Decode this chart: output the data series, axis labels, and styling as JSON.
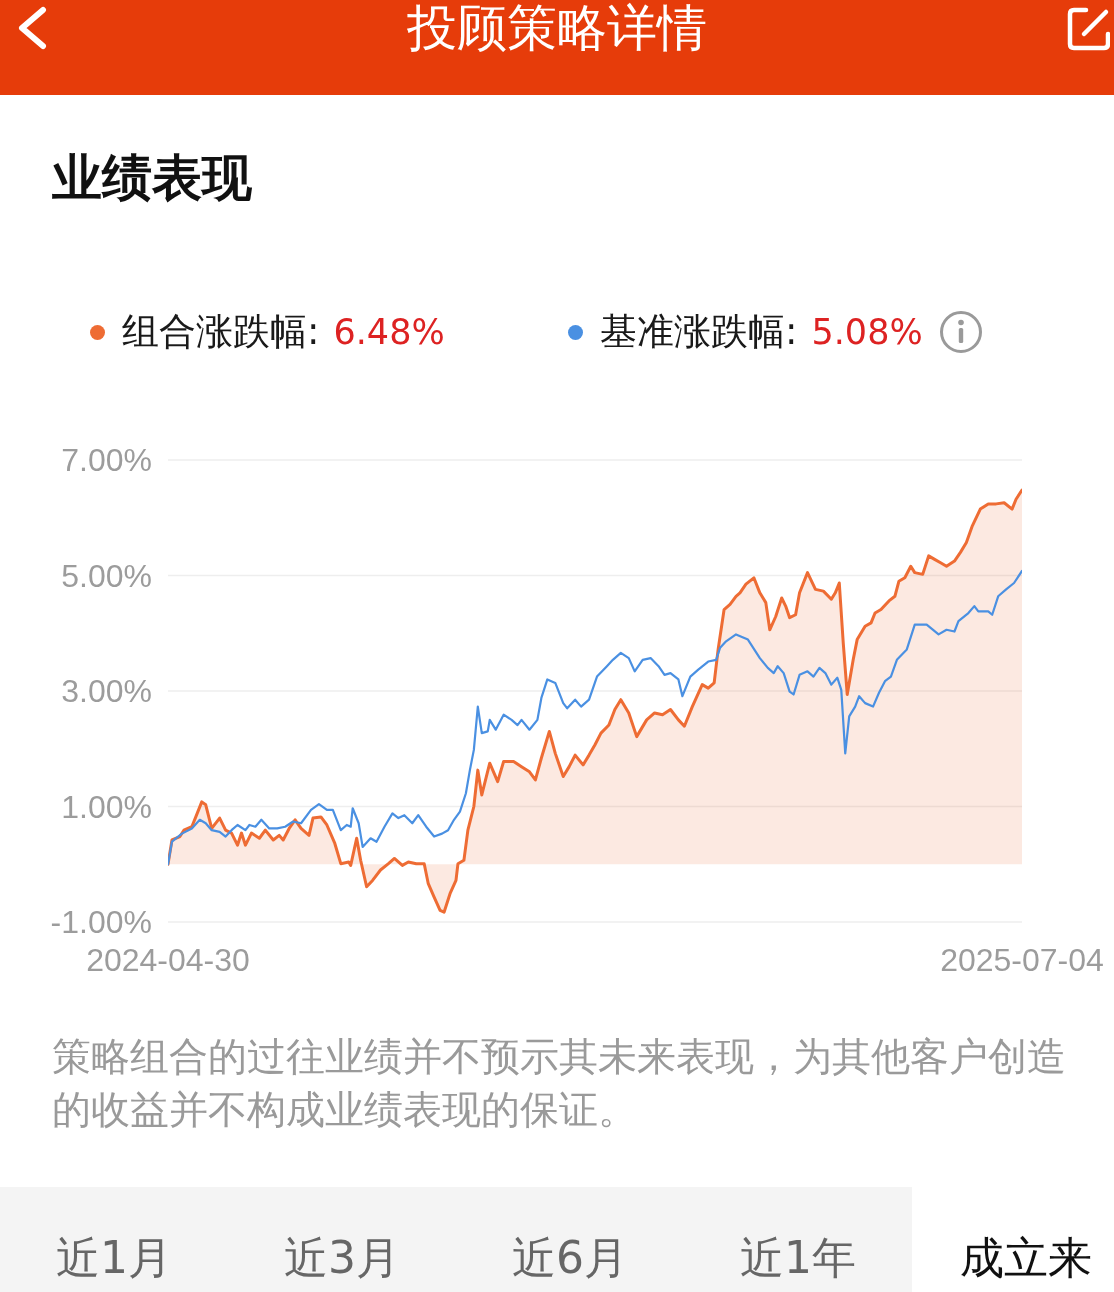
{
  "chart_data": {
    "type": "line",
    "title": "投顾策略详情",
    "subtitle": "业绩表现",
    "legend": "top",
    "grid": "y",
    "xlim": [
      "2024-04-30",
      "2025-07-04"
    ],
    "xticks": [
      "2024-04-30",
      "2025-07-04"
    ],
    "ylim": [
      -1,
      7
    ],
    "yticks": [
      {
        "value": -1,
        "label": "-1.00%"
      },
      {
        "value": 1,
        "label": "1.00%"
      },
      {
        "value": 3,
        "label": "3.00%"
      },
      {
        "value": 5,
        "label": "5.00%"
      },
      {
        "value": 7,
        "label": "7.00%"
      }
    ],
    "annotations": [
      "6.48%",
      "5.08%",
      "策略组合的过往业绩并不预示其未来表现，为其他客户创造的收益并不构成业绩表现的保证。",
      "近1月",
      "近3月",
      "近6月",
      "近1年",
      "成立来"
    ],
    "series": [
      {
        "name": "组合涨跌幅:",
        "type": "area",
        "color": "#ee6c34",
        "x": [
          "2024-04-30",
          "2024-05-02",
          "2024-05-06",
          "2024-05-08",
          "2024-05-12",
          "2024-05-14",
          "2024-05-17",
          "2024-05-19",
          "2024-05-22",
          "2024-05-26",
          "2024-05-29",
          "2024-06-01",
          "2024-06-04",
          "2024-06-06",
          "2024-06-08",
          "2024-06-11",
          "2024-06-15",
          "2024-06-18",
          "2024-06-22",
          "2024-06-25",
          "2024-06-27",
          "2024-06-30",
          "2024-07-03",
          "2024-07-06",
          "2024-07-10",
          "2024-07-12",
          "2024-07-16",
          "2024-07-19",
          "2024-07-23",
          "2024-07-26",
          "2024-07-30",
          "2024-07-31",
          "2024-08-03",
          "2024-08-05",
          "2024-08-08",
          "2024-08-11",
          "2024-08-15",
          "2024-08-19",
          "2024-08-22",
          "2024-08-26",
          "2024-08-29",
          "2024-09-02",
          "2024-09-06",
          "2024-09-08",
          "2024-09-11",
          "2024-09-14",
          "2024-09-16",
          "2024-09-19",
          "2024-09-22",
          "2024-09-23",
          "2024-09-26",
          "2024-09-28",
          "2024-10-01",
          "2024-10-03",
          "2024-10-05",
          "2024-10-09",
          "2024-10-13",
          "2024-10-16",
          "2024-10-21",
          "2024-10-25",
          "2024-10-29",
          "2024-11-01",
          "2024-11-04",
          "2024-11-08",
          "2024-11-11",
          "2024-11-15",
          "2024-11-18",
          "2024-11-21",
          "2024-11-25",
          "2024-11-28",
          "2024-12-01",
          "2024-12-04",
          "2024-12-08",
          "2024-12-11",
          "2024-12-14",
          "2024-12-18",
          "2024-12-22",
          "2024-12-27",
          "2024-12-31",
          "2025-01-04",
          "2025-01-08",
          "2025-01-12",
          "2025-01-15",
          "2025-01-19",
          "2025-01-24",
          "2025-01-27",
          "2025-01-30",
          "2025-02-01",
          "2025-02-04",
          "2025-02-07",
          "2025-02-10",
          "2025-02-12",
          "2025-02-15",
          "2025-02-19",
          "2025-02-22",
          "2025-02-25",
          "2025-02-27",
          "2025-03-02",
          "2025-03-05",
          "2025-03-07",
          "2025-03-09",
          "2025-03-12",
          "2025-03-14",
          "2025-03-18",
          "2025-03-22",
          "2025-03-26",
          "2025-03-30",
          "2025-04-01",
          "2025-04-03",
          "2025-04-05",
          "2025-04-07",
          "2025-04-08",
          "2025-04-10",
          "2025-04-12",
          "2025-04-16",
          "2025-04-19",
          "2025-04-21",
          "2025-04-24",
          "2025-04-28",
          "2025-05-01",
          "2025-05-03",
          "2025-05-06",
          "2025-05-09",
          "2025-05-11",
          "2025-05-15",
          "2025-05-18",
          "2025-05-21",
          "2025-05-24",
          "2025-05-27",
          "2025-05-31",
          "2025-06-03",
          "2025-06-06",
          "2025-06-09",
          "2025-06-13",
          "2025-06-17",
          "2025-06-21",
          "2025-06-25",
          "2025-06-29",
          "2025-07-01",
          "2025-07-04"
        ],
        "values": [
          0.0,
          0.42,
          0.48,
          0.59,
          0.65,
          0.82,
          1.08,
          1.03,
          0.62,
          0.8,
          0.59,
          0.54,
          0.33,
          0.54,
          0.33,
          0.54,
          0.45,
          0.59,
          0.42,
          0.5,
          0.42,
          0.62,
          0.77,
          0.62,
          0.5,
          0.8,
          0.82,
          0.68,
          0.36,
          0.01,
          0.04,
          -0.02,
          0.45,
          0.07,
          -0.39,
          -0.28,
          -0.1,
          0.01,
          0.1,
          -0.02,
          0.04,
          0.01,
          0.01,
          -0.33,
          -0.57,
          -0.8,
          -0.83,
          -0.51,
          -0.28,
          0.01,
          0.07,
          0.59,
          1.0,
          1.63,
          1.2,
          1.75,
          1.43,
          1.78,
          1.78,
          1.69,
          1.6,
          1.46,
          1.84,
          2.3,
          1.92,
          1.52,
          1.69,
          1.89,
          1.72,
          1.89,
          2.07,
          2.27,
          2.41,
          2.68,
          2.85,
          2.62,
          2.21,
          2.5,
          2.62,
          2.59,
          2.68,
          2.5,
          2.39,
          2.73,
          3.11,
          3.05,
          3.14,
          3.72,
          4.41,
          4.5,
          4.64,
          4.7,
          4.85,
          4.96,
          4.7,
          4.53,
          4.06,
          4.29,
          4.61,
          4.47,
          4.27,
          4.32,
          4.7,
          5.05,
          4.76,
          4.73,
          4.59,
          4.7,
          4.87,
          3.83,
          2.94,
          3.14,
          3.54,
          3.89,
          4.12,
          4.18,
          4.35,
          4.41,
          4.56,
          4.64,
          4.9,
          4.96,
          5.16,
          5.05,
          5.02,
          5.34,
          5.28,
          5.22,
          5.16,
          5.25,
          5.4,
          5.57,
          5.86,
          6.15,
          6.24,
          6.24,
          6.26,
          6.15,
          6.32,
          6.48
        ]
      },
      {
        "name": "基准涨跌幅:",
        "color": "#4a90e2",
        "x": [
          "2024-04-30",
          "2024-05-02",
          "2024-05-07",
          "2024-05-12",
          "2024-05-16",
          "2024-05-19",
          "2024-05-22",
          "2024-05-26",
          "2024-05-29",
          "2024-06-01",
          "2024-06-04",
          "2024-06-08",
          "2024-06-10",
          "2024-06-13",
          "2024-06-16",
          "2024-06-20",
          "2024-06-24",
          "2024-06-28",
          "2024-07-02",
          "2024-07-06",
          "2024-07-11",
          "2024-07-15",
          "2024-07-19",
          "2024-07-22",
          "2024-07-26",
          "2024-07-29",
          "2024-07-31",
          "2024-08-01",
          "2024-08-04",
          "2024-08-06",
          "2024-08-10",
          "2024-08-13",
          "2024-08-17",
          "2024-08-21",
          "2024-08-24",
          "2024-08-27",
          "2024-08-31",
          "2024-09-03",
          "2024-09-07",
          "2024-09-11",
          "2024-09-15",
          "2024-09-18",
          "2024-09-21",
          "2024-09-24",
          "2024-09-27",
          "2024-09-29",
          "2024-10-01",
          "2024-10-03",
          "2024-10-05",
          "2024-10-08",
          "2024-10-09",
          "2024-10-12",
          "2024-10-16",
          "2024-10-20",
          "2024-10-23",
          "2024-10-25",
          "2024-10-29",
          "2024-11-02",
          "2024-11-04",
          "2024-11-07",
          "2024-11-11",
          "2024-11-15",
          "2024-11-17",
          "2024-11-21",
          "2024-11-24",
          "2024-11-28",
          "2024-12-02",
          "2024-12-07",
          "2024-12-10",
          "2024-12-14",
          "2024-12-18",
          "2024-12-21",
          "2024-12-25",
          "2024-12-29",
          "2025-01-02",
          "2025-01-05",
          "2025-01-08",
          "2025-01-12",
          "2025-01-14",
          "2025-01-18",
          "2025-01-22",
          "2025-01-27",
          "2025-01-31",
          "2025-02-02",
          "2025-02-05",
          "2025-02-10",
          "2025-02-16",
          "2025-02-22",
          "2025-02-26",
          "2025-03-01",
          "2025-03-03",
          "2025-03-06",
          "2025-03-09",
          "2025-03-11",
          "2025-03-14",
          "2025-03-18",
          "2025-03-21",
          "2025-03-24",
          "2025-03-27",
          "2025-03-30",
          "2025-04-02",
          "2025-04-04",
          "2025-04-06",
          "2025-04-08",
          "2025-04-11",
          "2025-04-13",
          "2025-04-16",
          "2025-04-20",
          "2025-04-23",
          "2025-04-26",
          "2025-04-29",
          "2025-05-02",
          "2025-05-07",
          "2025-05-11",
          "2025-05-17",
          "2025-05-23",
          "2025-05-27",
          "2025-05-31",
          "2025-06-02",
          "2025-06-07",
          "2025-06-10",
          "2025-06-12",
          "2025-06-17",
          "2025-06-19",
          "2025-06-22",
          "2025-06-26",
          "2025-06-30",
          "2025-07-04"
        ],
        "values": [
          0.0,
          0.39,
          0.53,
          0.62,
          0.77,
          0.71,
          0.59,
          0.56,
          0.48,
          0.59,
          0.68,
          0.59,
          0.68,
          0.65,
          0.77,
          0.62,
          0.62,
          0.65,
          0.74,
          0.71,
          0.94,
          1.04,
          0.94,
          0.94,
          0.59,
          0.68,
          0.65,
          0.97,
          0.71,
          0.3,
          0.45,
          0.39,
          0.65,
          0.88,
          0.8,
          0.85,
          0.71,
          0.85,
          0.65,
          0.48,
          0.53,
          0.59,
          0.77,
          0.91,
          1.23,
          1.63,
          1.98,
          2.73,
          2.27,
          2.3,
          2.5,
          2.33,
          2.59,
          2.5,
          2.41,
          2.5,
          2.33,
          2.5,
          2.88,
          3.2,
          3.14,
          2.79,
          2.7,
          2.85,
          2.73,
          2.85,
          3.25,
          3.43,
          3.54,
          3.66,
          3.57,
          3.34,
          3.54,
          3.57,
          3.43,
          3.28,
          3.31,
          3.2,
          2.91,
          3.25,
          3.37,
          3.51,
          3.54,
          3.75,
          3.86,
          3.98,
          3.89,
          3.57,
          3.4,
          3.31,
          3.43,
          3.31,
          2.99,
          2.94,
          3.28,
          3.34,
          3.25,
          3.4,
          3.31,
          3.11,
          3.23,
          3.02,
          1.92,
          2.56,
          2.73,
          2.91,
          2.79,
          2.73,
          2.97,
          3.17,
          3.25,
          3.54,
          3.72,
          4.15,
          4.15,
          3.98,
          4.06,
          4.03,
          4.21,
          4.35,
          4.47,
          4.38,
          4.38,
          4.32,
          4.64,
          4.76,
          4.87,
          5.08
        ]
      }
    ]
  }
}
